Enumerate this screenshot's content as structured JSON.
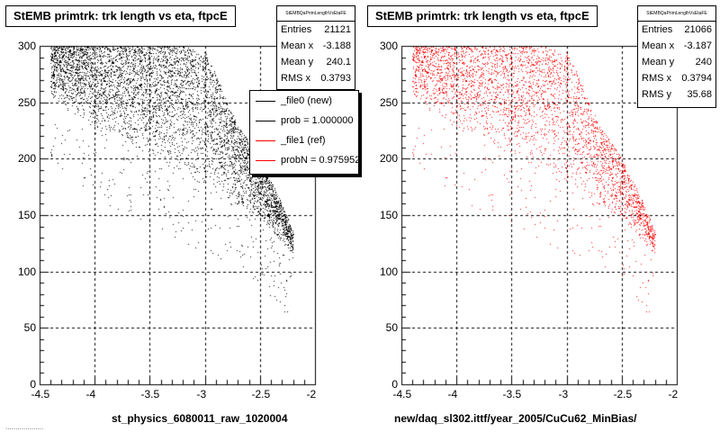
{
  "panels": [
    {
      "title": "StEMB primtrk: trk length vs eta, ftpcE",
      "stats_header": "StEMBQaPrimLengthVsEtaFE",
      "stats": [
        {
          "label": "Entries",
          "value": "21121"
        },
        {
          "label": "Mean x",
          "value": "-3.188"
        },
        {
          "label": "Mean y",
          "value": "240.1"
        },
        {
          "label": "RMS x",
          "value": "0.3793"
        }
      ],
      "xtitle": "st_physics_6080011_raw_1020004"
    },
    {
      "title": "StEMB primtrk: trk length vs eta, ftpcE",
      "stats_header": "StEMBQaPrimLengthVsEtaFE",
      "stats": [
        {
          "label": "Entries",
          "value": "21066"
        },
        {
          "label": "Mean x",
          "value": "-3.187"
        },
        {
          "label": "Mean y",
          "value": "240"
        },
        {
          "label": "RMS x",
          "value": "0.3794"
        },
        {
          "label": "RMS y",
          "value": "35.68"
        }
      ],
      "xtitle": "new/daq_sl302.ittf/year_2005/CuCu62_MinBias/"
    }
  ],
  "legend": [
    {
      "label": "_file0 (new)",
      "color": "#000000"
    },
    {
      "label": "prob = 1.000000",
      "color": "#000000"
    },
    {
      "label": "_file1 (ref)",
      "color": "#ff0000"
    },
    {
      "label": "probN = 0.975952",
      "color": "#ff0000"
    }
  ],
  "footer": "...................",
  "chart_data": [
    {
      "type": "scatter",
      "series": [
        {
          "name": "_file0 (new)",
          "color": "#000000"
        }
      ],
      "entries": 21121,
      "xlim": [
        -4.5,
        -2
      ],
      "ylim": [
        0,
        300
      ],
      "xticks": [
        -4.5,
        -4,
        -3.5,
        -3,
        -2.5,
        -2
      ],
      "yticks": [
        0,
        50,
        100,
        150,
        200,
        250,
        300
      ],
      "grid": true,
      "envelope": {
        "x": [
          -4.4,
          -4.2,
          -4.0,
          -3.8,
          -3.6,
          -3.4,
          -3.2,
          -3.0,
          -2.9,
          -2.8,
          -2.7,
          -2.6,
          -2.5,
          -2.4,
          -2.3,
          -2.2
        ],
        "ymin": [
          255,
          240,
          225,
          215,
          205,
          195,
          185,
          175,
          170,
          165,
          155,
          150,
          145,
          135,
          125,
          115
        ],
        "ymax": [
          300,
          300,
          300,
          300,
          300,
          300,
          300,
          295,
          275,
          250,
          230,
          215,
          200,
          180,
          160,
          135
        ]
      }
    },
    {
      "type": "scatter",
      "series": [
        {
          "name": "_file1 (ref)",
          "color": "#ff0000"
        }
      ],
      "entries": 21066,
      "xlim": [
        -4.5,
        -2
      ],
      "ylim": [
        0,
        300
      ],
      "xticks": [
        -4.5,
        -4,
        -3.5,
        -3,
        -2.5,
        -2
      ],
      "yticks": [
        0,
        50,
        100,
        150,
        200,
        250,
        300
      ],
      "grid": true,
      "envelope": {
        "x": [
          -4.4,
          -4.2,
          -4.0,
          -3.8,
          -3.6,
          -3.4,
          -3.2,
          -3.0,
          -2.9,
          -2.8,
          -2.7,
          -2.6,
          -2.5,
          -2.4,
          -2.3,
          -2.2
        ],
        "ymin": [
          255,
          240,
          225,
          215,
          205,
          195,
          185,
          175,
          170,
          165,
          155,
          150,
          145,
          135,
          125,
          115
        ],
        "ymax": [
          300,
          300,
          300,
          300,
          300,
          300,
          300,
          295,
          275,
          250,
          230,
          215,
          200,
          180,
          160,
          135
        ]
      }
    }
  ]
}
